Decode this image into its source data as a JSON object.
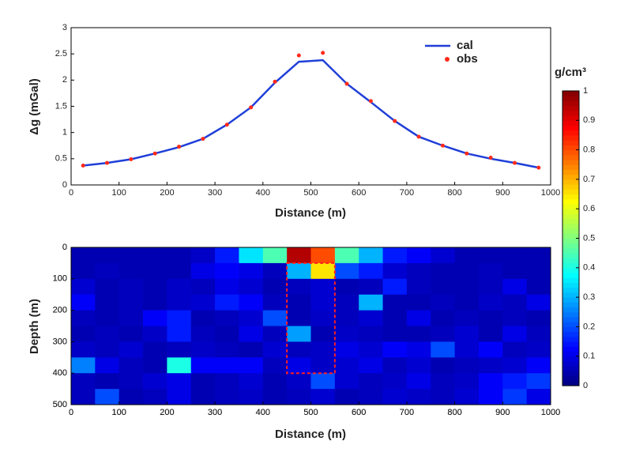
{
  "chart_data": [
    {
      "type": "line",
      "ylabel": "Δg (mGal)",
      "xlabel": "Distance (m)",
      "x": [
        25,
        75,
        125,
        175,
        225,
        275,
        325,
        375,
        425,
        475,
        525,
        575,
        625,
        675,
        725,
        775,
        825,
        875,
        925,
        975
      ],
      "series": [
        {
          "name": "cal",
          "color": "#1f3fd8",
          "style": "line",
          "values": [
            0.37,
            0.42,
            0.49,
            0.6,
            0.72,
            0.88,
            1.15,
            1.48,
            1.95,
            2.35,
            2.38,
            1.93,
            1.58,
            1.22,
            0.92,
            0.75,
            0.6,
            0.5,
            0.42,
            0.33
          ]
        },
        {
          "name": "obs",
          "color": "#ff2a1a",
          "style": "marker",
          "values": [
            0.37,
            0.42,
            0.49,
            0.6,
            0.73,
            0.88,
            1.15,
            1.48,
            1.97,
            2.47,
            2.52,
            1.93,
            1.6,
            1.22,
            0.92,
            0.75,
            0.6,
            0.52,
            0.42,
            0.33
          ]
        }
      ],
      "xlim": [
        0,
        1000
      ],
      "xticks": [
        0,
        100,
        200,
        300,
        400,
        500,
        600,
        700,
        800,
        900,
        1000
      ],
      "ylim": [
        0,
        3
      ],
      "yticks": [
        0,
        0.5,
        1,
        1.5,
        2,
        2.5,
        3
      ],
      "legend": "upper right"
    },
    {
      "type": "heatmap",
      "xlabel": "Distance (m)",
      "ylabel": "Depth (m)",
      "xlim": [
        0,
        1000
      ],
      "xticks": [
        0,
        100,
        200,
        300,
        400,
        500,
        600,
        700,
        800,
        900,
        1000
      ],
      "ylim": [
        0,
        500
      ],
      "yticks": [
        0,
        100,
        200,
        300,
        400,
        500
      ],
      "y_inverted": true,
      "values": [
        [
          0.05,
          0.05,
          0.05,
          0.05,
          0.05,
          0.07,
          0.15,
          0.35,
          0.45,
          0.95,
          0.8,
          0.45,
          0.3,
          0.15,
          0.12,
          0.08,
          0.05,
          0.05,
          0.05,
          0.05
        ],
        [
          0.05,
          0.06,
          0.05,
          0.05,
          0.05,
          0.1,
          0.12,
          0.1,
          0.06,
          0.3,
          0.65,
          0.2,
          0.15,
          0.08,
          0.06,
          0.05,
          0.05,
          0.06,
          0.05,
          0.05
        ],
        [
          0.08,
          0.05,
          0.06,
          0.05,
          0.07,
          0.06,
          0.1,
          0.08,
          0.05,
          0.06,
          0.08,
          0.05,
          0.06,
          0.15,
          0.06,
          0.05,
          0.05,
          0.06,
          0.1,
          0.05
        ],
        [
          0.12,
          0.05,
          0.06,
          0.05,
          0.07,
          0.08,
          0.15,
          0.12,
          0.06,
          0.05,
          0.08,
          0.06,
          0.3,
          0.05,
          0.05,
          0.06,
          0.05,
          0.07,
          0.06,
          0.1
        ],
        [
          0.06,
          0.05,
          0.06,
          0.12,
          0.15,
          0.05,
          0.06,
          0.08,
          0.2,
          0.05,
          0.07,
          0.06,
          0.08,
          0.05,
          0.1,
          0.05,
          0.06,
          0.05,
          0.06,
          0.05
        ],
        [
          0.05,
          0.06,
          0.05,
          0.07,
          0.15,
          0.06,
          0.05,
          0.1,
          0.06,
          0.28,
          0.05,
          0.07,
          0.06,
          0.05,
          0.05,
          0.06,
          0.08,
          0.05,
          0.1,
          0.06
        ],
        [
          0.07,
          0.06,
          0.08,
          0.05,
          0.06,
          0.07,
          0.06,
          0.05,
          0.08,
          0.06,
          0.07,
          0.1,
          0.08,
          0.12,
          0.1,
          0.2,
          0.08,
          0.12,
          0.06,
          0.07
        ],
        [
          0.25,
          0.1,
          0.06,
          0.05,
          0.4,
          0.12,
          0.12,
          0.12,
          0.06,
          0.1,
          0.07,
          0.08,
          0.1,
          0.06,
          0.08,
          0.05,
          0.06,
          0.07,
          0.08,
          0.12
        ],
        [
          0.06,
          0.05,
          0.06,
          0.08,
          0.1,
          0.05,
          0.06,
          0.08,
          0.05,
          0.07,
          0.2,
          0.08,
          0.06,
          0.07,
          0.1,
          0.06,
          0.07,
          0.12,
          0.15,
          0.18
        ],
        [
          0.06,
          0.2,
          0.05,
          0.06,
          0.1,
          0.05,
          0.06,
          0.07,
          0.05,
          0.06,
          0.08,
          0.05,
          0.06,
          0.08,
          0.07,
          0.06,
          0.08,
          0.12,
          0.18,
          0.1
        ]
      ],
      "anomaly_box": {
        "xlim": [
          450,
          550
        ],
        "ylim": [
          50,
          400
        ],
        "color": "#ff2020"
      },
      "colormap": "jet",
      "clim": [
        0,
        1
      ],
      "colorbar_label": "g/cm³",
      "cticks": [
        0,
        0.1,
        0.2,
        0.3,
        0.4,
        0.5,
        0.6,
        0.7,
        0.8,
        0.9,
        1
      ]
    }
  ]
}
